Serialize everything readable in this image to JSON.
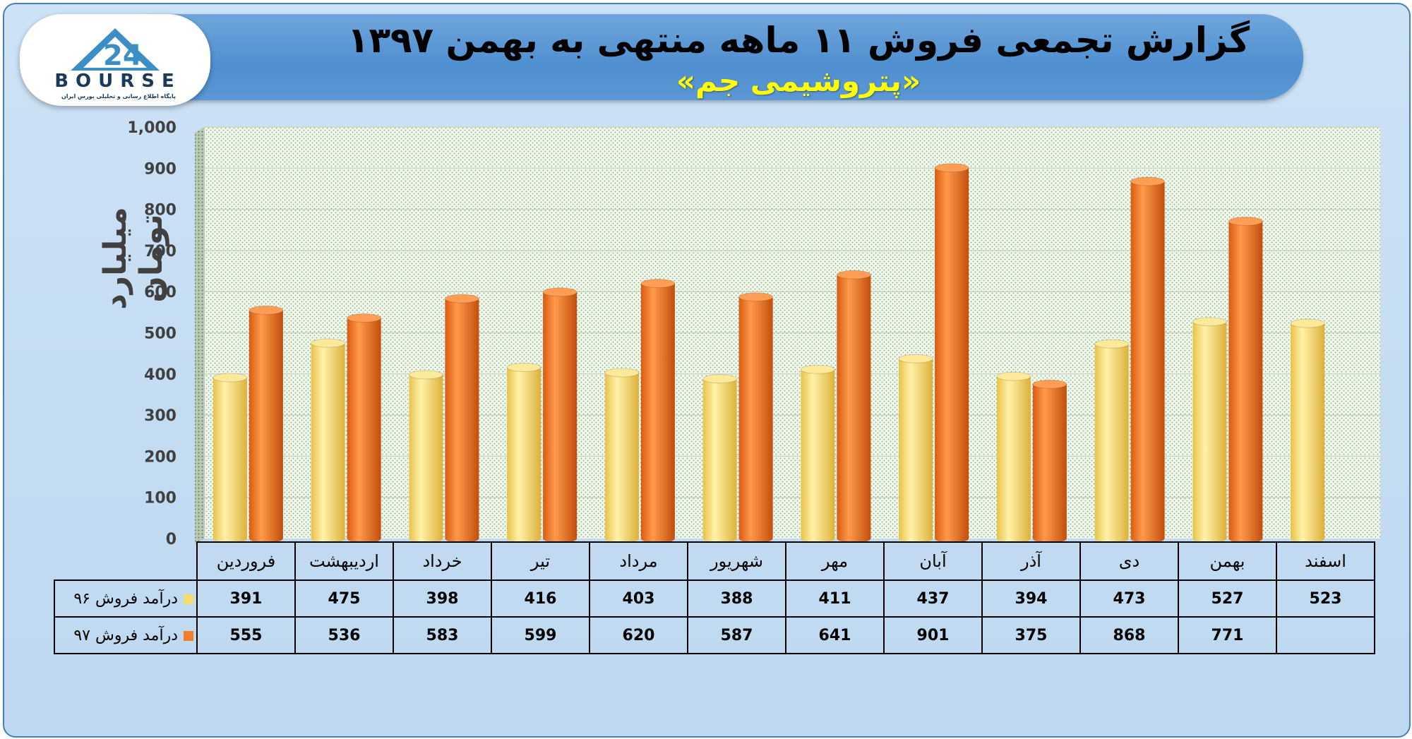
{
  "title": {
    "main": "گزارش تجمعی فروش ۱۱ ماهه منتهی به بهمن ۱۳۹۷",
    "sub": "«پتروشیمی جم»"
  },
  "logo": {
    "word": "BOURSE",
    "tagline": "پایگاه اطلاع رسانی و تحلیلی بورس ایران"
  },
  "chart_data": {
    "type": "bar",
    "ylabel": "میلیارد تومان",
    "ylim": [
      0,
      1000
    ],
    "yticks": [
      "0",
      "100",
      "200",
      "300",
      "400",
      "500",
      "600",
      "700",
      "800",
      "900",
      "1,000"
    ],
    "grid": true,
    "categories": [
      "فروردین",
      "اردیبهشت",
      "خرداد",
      "تیر",
      "مرداد",
      "شهریور",
      "مهر",
      "آبان",
      "آذر",
      "دی",
      "بهمن",
      "اسفند"
    ],
    "series": [
      {
        "name": "درآمد فروش ۹۶",
        "color": "#f5dc6e",
        "values": [
          391,
          475,
          398,
          416,
          403,
          388,
          411,
          437,
          394,
          473,
          527,
          523
        ]
      },
      {
        "name": "درآمد فروش ۹۷",
        "color": "#f07f2c",
        "values": [
          555,
          536,
          583,
          599,
          620,
          587,
          641,
          901,
          375,
          868,
          771,
          null
        ]
      }
    ]
  }
}
